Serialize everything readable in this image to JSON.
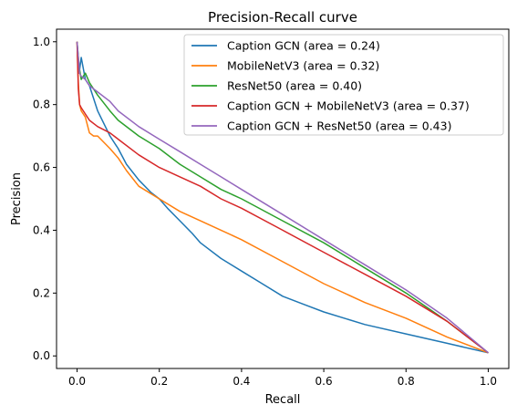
{
  "chart_data": {
    "type": "line",
    "title": "Precision-Recall curve",
    "xlabel": "Recall",
    "ylabel": "Precision",
    "xlim": [
      -0.05,
      1.05
    ],
    "ylim": [
      -0.04,
      1.04
    ],
    "xticks": [
      "0.0",
      "0.2",
      "0.4",
      "0.6",
      "0.8",
      "1.0"
    ],
    "yticks": [
      "0.0",
      "0.2",
      "0.4",
      "0.6",
      "0.8",
      "1.0"
    ],
    "grid": false,
    "legend_position": "upper-right",
    "series": [
      {
        "name": "Caption GCN (area = 0.24)",
        "color": "#1f77b4",
        "x": [
          0.0,
          0.005,
          0.01,
          0.02,
          0.03,
          0.05,
          0.08,
          0.1,
          0.12,
          0.15,
          0.18,
          0.2,
          0.22,
          0.25,
          0.28,
          0.3,
          0.35,
          0.4,
          0.45,
          0.5,
          0.55,
          0.6,
          0.7,
          0.8,
          0.9,
          1.0
        ],
        "y": [
          1.0,
          0.9,
          0.95,
          0.88,
          0.86,
          0.78,
          0.7,
          0.66,
          0.61,
          0.56,
          0.52,
          0.5,
          0.47,
          0.43,
          0.39,
          0.36,
          0.31,
          0.27,
          0.23,
          0.19,
          0.165,
          0.14,
          0.1,
          0.07,
          0.04,
          0.01
        ]
      },
      {
        "name": "MobileNetV3 (area = 0.32)",
        "color": "#ff7f0e",
        "x": [
          0.0,
          0.003,
          0.006,
          0.01,
          0.02,
          0.03,
          0.04,
          0.05,
          0.08,
          0.1,
          0.12,
          0.15,
          0.2,
          0.25,
          0.3,
          0.35,
          0.4,
          0.5,
          0.6,
          0.7,
          0.8,
          0.9,
          1.0
        ],
        "y": [
          1.0,
          0.87,
          0.8,
          0.78,
          0.76,
          0.71,
          0.7,
          0.7,
          0.66,
          0.63,
          0.59,
          0.54,
          0.5,
          0.46,
          0.43,
          0.4,
          0.37,
          0.3,
          0.23,
          0.17,
          0.12,
          0.06,
          0.01
        ]
      },
      {
        "name": "ResNet50 (area = 0.40)",
        "color": "#2ca02c",
        "x": [
          0.0,
          0.005,
          0.01,
          0.02,
          0.03,
          0.05,
          0.08,
          0.1,
          0.15,
          0.2,
          0.25,
          0.3,
          0.35,
          0.4,
          0.5,
          0.6,
          0.7,
          0.8,
          0.9,
          1.0
        ],
        "y": [
          1.0,
          0.92,
          0.88,
          0.9,
          0.87,
          0.83,
          0.78,
          0.75,
          0.7,
          0.66,
          0.61,
          0.57,
          0.53,
          0.5,
          0.43,
          0.36,
          0.28,
          0.2,
          0.11,
          0.01
        ]
      },
      {
        "name": "Caption GCN + MobileNetV3 (area = 0.37)",
        "color": "#d62728",
        "x": [
          0.0,
          0.003,
          0.006,
          0.01,
          0.02,
          0.03,
          0.05,
          0.08,
          0.1,
          0.15,
          0.2,
          0.25,
          0.3,
          0.35,
          0.4,
          0.5,
          0.6,
          0.7,
          0.8,
          0.9,
          1.0
        ],
        "y": [
          1.0,
          0.85,
          0.8,
          0.79,
          0.77,
          0.75,
          0.73,
          0.71,
          0.69,
          0.64,
          0.6,
          0.57,
          0.54,
          0.5,
          0.47,
          0.4,
          0.33,
          0.26,
          0.19,
          0.11,
          0.01
        ]
      },
      {
        "name": "Caption GCN + ResNet50 (area = 0.43)",
        "color": "#9467bd",
        "x": [
          0.0,
          0.003,
          0.006,
          0.01,
          0.02,
          0.03,
          0.05,
          0.08,
          0.1,
          0.15,
          0.2,
          0.25,
          0.3,
          0.35,
          0.4,
          0.5,
          0.6,
          0.7,
          0.8,
          0.9,
          1.0
        ],
        "y": [
          1.0,
          0.95,
          0.9,
          0.89,
          0.88,
          0.86,
          0.84,
          0.81,
          0.78,
          0.73,
          0.69,
          0.65,
          0.61,
          0.57,
          0.53,
          0.45,
          0.37,
          0.29,
          0.21,
          0.12,
          0.01
        ]
      }
    ]
  }
}
